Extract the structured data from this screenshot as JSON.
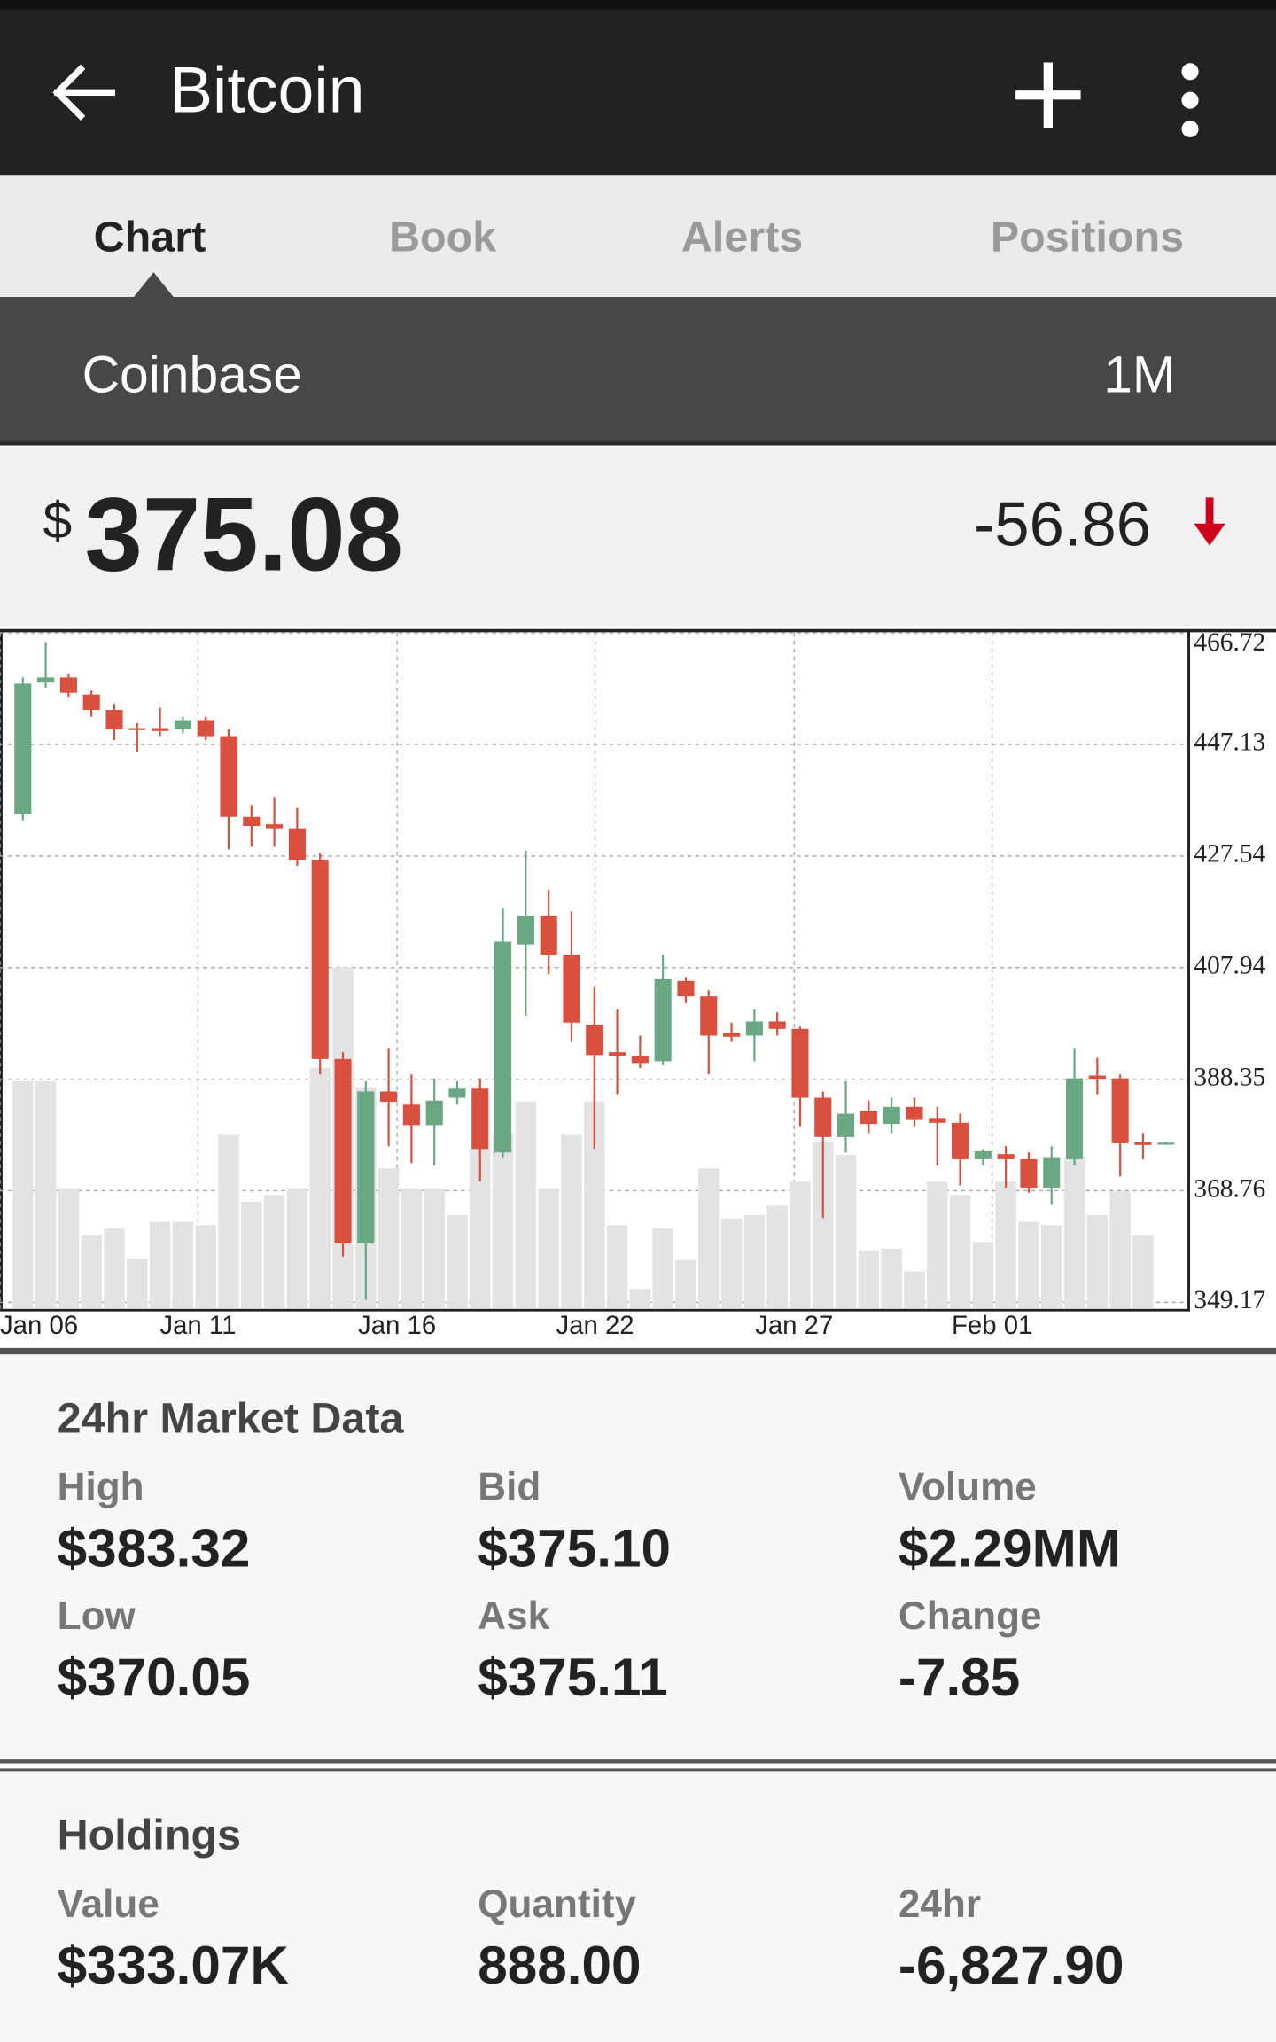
{
  "header": {
    "title": "Bitcoin"
  },
  "tabs": [
    "Chart",
    "Book",
    "Alerts",
    "Positions"
  ],
  "exchange": "Coinbase",
  "range": "1M",
  "price": {
    "currency": "$",
    "value": "375.08",
    "change": "-56.86"
  },
  "chart_data": {
    "type": "candlestick",
    "x": [
      1,
      2,
      3,
      4,
      5,
      6,
      7,
      8,
      9,
      10,
      11,
      12,
      13,
      14,
      15,
      16,
      17,
      18,
      19,
      20,
      21,
      22,
      23,
      24,
      25,
      26,
      27,
      28,
      29,
      30,
      31,
      32,
      33,
      34,
      35,
      36,
      37,
      38,
      39,
      40,
      41,
      42,
      43,
      44,
      45,
      46,
      47,
      48,
      49,
      50,
      51
    ],
    "open": [
      434.9,
      458.0,
      458.9,
      455.9,
      453.2,
      450.0,
      450.0,
      449.8,
      451.4,
      448.6,
      434.4,
      433.1,
      432.4,
      426.9,
      391.9,
      359.5,
      386.2,
      383.9,
      380.3,
      385.1,
      386.7,
      375.5,
      412.0,
      417.1,
      410.2,
      397.9,
      393.1,
      392.4,
      391.5,
      405.6,
      402.9,
      396.5,
      396.0,
      398.5,
      397.2,
      385.1,
      378.2,
      382.8,
      380.5,
      383.5,
      381.4,
      380.7,
      374.3,
      375.2,
      374.3,
      369.3,
      374.3,
      389.0,
      388.5,
      377.3,
      377.0
    ],
    "high": [
      458.9,
      465.1,
      459.6,
      456.6,
      454.3,
      450.9,
      453.6,
      452.0,
      452.0,
      449.8,
      436.5,
      437.9,
      436.0,
      428.0,
      393.1,
      388.0,
      393.7,
      389.2,
      388.5,
      388.0,
      388.5,
      418.4,
      428.5,
      421.6,
      417.8,
      404.5,
      400.6,
      396.0,
      410.2,
      406.3,
      404.0,
      398.3,
      400.6,
      400.1,
      397.6,
      386.2,
      388.0,
      384.6,
      385.1,
      385.1,
      383.5,
      382.3,
      376.1,
      376.6,
      375.5,
      376.6,
      393.7,
      392.1,
      389.2,
      378.9,
      377.4
    ],
    "low": [
      433.8,
      457.1,
      455.5,
      452.0,
      447.9,
      445.9,
      448.6,
      449.1,
      447.9,
      428.7,
      429.2,
      429.2,
      425.8,
      389.2,
      357.2,
      349.6,
      376.6,
      373.6,
      373.2,
      383.9,
      370.4,
      374.5,
      399.5,
      406.8,
      394.9,
      376.1,
      385.7,
      390.3,
      390.8,
      401.7,
      389.2,
      394.9,
      391.5,
      396.0,
      380.0,
      364.0,
      375.5,
      378.9,
      378.9,
      380.0,
      373.2,
      369.7,
      373.2,
      369.3,
      368.4,
      366.3,
      373.2,
      385.7,
      371.3,
      374.3,
      376.8
    ],
    "close": [
      457.8,
      458.9,
      456.2,
      453.2,
      449.8,
      449.9,
      449.5,
      451.4,
      448.6,
      434.4,
      432.8,
      432.4,
      426.9,
      391.9,
      359.5,
      386.2,
      384.4,
      380.3,
      384.6,
      386.7,
      376.1,
      412.5,
      417.1,
      410.2,
      398.3,
      392.6,
      392.4,
      391.2,
      405.9,
      402.9,
      396.0,
      395.8,
      398.5,
      397.2,
      385.1,
      378.2,
      382.3,
      380.5,
      383.5,
      381.2,
      380.7,
      374.3,
      375.7,
      374.3,
      369.3,
      374.5,
      388.5,
      388.3,
      377.1,
      376.8,
      377.2
    ],
    "volume": [
      34,
      34,
      18,
      11,
      12,
      7.5,
      13,
      13,
      12.5,
      26,
      16,
      17,
      18,
      36,
      51,
      33,
      21,
      18,
      18,
      14,
      24,
      26,
      31,
      18,
      26,
      31,
      12.5,
      3,
      12,
      7.3,
      21,
      13.5,
      14,
      15.4,
      19,
      25,
      23,
      8.7,
      9,
      5.6,
      19,
      17,
      10,
      19,
      13,
      12.5,
      22.5,
      14,
      17.5,
      11,
      0
    ],
    "xlim": [
      0,
      52
    ],
    "xticks": [
      {
        "value": 0,
        "label": "Jan 06"
      },
      {
        "value": 8.66,
        "label": "Jan 11"
      },
      {
        "value": 17.37,
        "label": "Jan 16"
      },
      {
        "value": 26.03,
        "label": "Jan 22"
      },
      {
        "value": 34.74,
        "label": "Jan 27"
      },
      {
        "value": 43.4,
        "label": "Feb 01"
      }
    ],
    "ylim": [
      349.17,
      466.72
    ],
    "yticks": [
      349.17,
      368.76,
      388.35,
      407.94,
      427.54,
      447.13,
      466.72
    ],
    "y2lim": [
      0,
      100
    ],
    "grid": true,
    "up_color": "#6aa884",
    "down_color": "#d9503f",
    "volume_color": "#e3e3e3"
  },
  "market_data": {
    "title": "24hr Market Data",
    "items": [
      {
        "label": "High",
        "value": "$383.32"
      },
      {
        "label": "Bid",
        "value": "$375.10"
      },
      {
        "label": "Volume",
        "value": "$2.29MM"
      },
      {
        "label": "Low",
        "value": "$370.05"
      },
      {
        "label": "Ask",
        "value": "$375.11"
      },
      {
        "label": "Change",
        "value": "-7.85"
      }
    ]
  },
  "holdings": {
    "title": "Holdings",
    "items": [
      {
        "label": "Value",
        "value": "$333.07K"
      },
      {
        "label": "Quantity",
        "value": "888.00"
      },
      {
        "label": "24hr",
        "value": "-6,827.90"
      }
    ]
  }
}
